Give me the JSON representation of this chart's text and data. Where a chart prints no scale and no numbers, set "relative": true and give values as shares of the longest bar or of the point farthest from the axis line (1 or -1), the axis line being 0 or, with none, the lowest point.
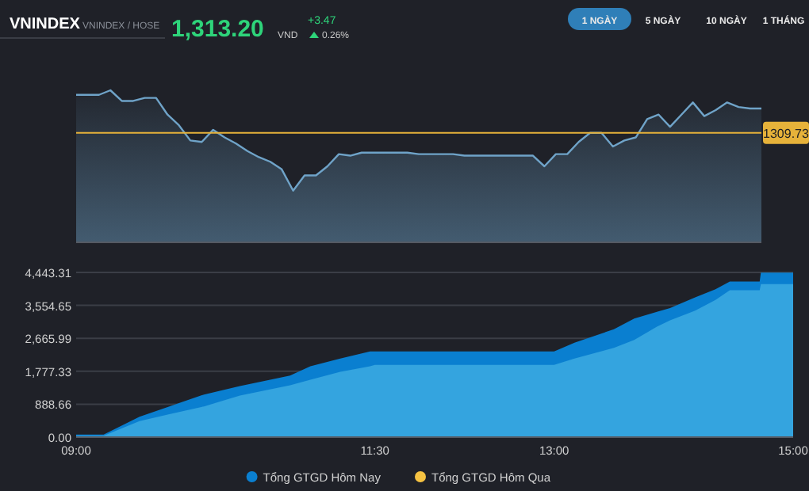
{
  "chart_data": [
    {
      "type": "area",
      "relative": true,
      "title": "VNINDEX",
      "subtitle": "VNINDEX / HOSE",
      "annotations": [
        "1,313.20",
        "VND",
        "+3.47",
        "0.26%",
        "1 NGÀY",
        "5 NGÀY",
        "10 NGÀY",
        "1 THÁNG",
        "1309.73"
      ],
      "categories": [
        null,
        null,
        null,
        null,
        null,
        null,
        null,
        null,
        null,
        null,
        null,
        null,
        null,
        null,
        null,
        null,
        null,
        null,
        null,
        null,
        null,
        null,
        null,
        null,
        null,
        null,
        null,
        null,
        null,
        null,
        null,
        null,
        null,
        null,
        null,
        null,
        null,
        null,
        null,
        null,
        null,
        null,
        null,
        null,
        null,
        null,
        null,
        null,
        null,
        null,
        null,
        null,
        null,
        null,
        null,
        null,
        null,
        null,
        null,
        null,
        null
      ],
      "ref_lines": [
        {
          "axis": "y",
          "value": 0.72,
          "color": "#e6b23a"
        }
      ],
      "series": [
        {
          "color": "#6fa3c8",
          "values": [
            0.97,
            0.97,
            0.97,
            1,
            0.93,
            0.93,
            0.95,
            0.95,
            0.84,
            0.77,
            0.67,
            0.66,
            0.74,
            0.69,
            0.65,
            0.6,
            0.56,
            0.53,
            0.48,
            0.34,
            0.44,
            0.44,
            0.5,
            0.58,
            0.57,
            0.59,
            0.59,
            0.59,
            0.59,
            0.59,
            0.58,
            0.58,
            0.58,
            0.58,
            0.57,
            0.57,
            0.57,
            0.57,
            0.57,
            0.57,
            0.57,
            0.5,
            0.58,
            0.58,
            0.66,
            0.72,
            0.72,
            0.63,
            0.67,
            0.69,
            0.81,
            0.84,
            0.76,
            0.84,
            0.92,
            0.83,
            0.87,
            0.92,
            0.89,
            0.88,
            0.88
          ]
        }
      ]
    },
    {
      "type": "area",
      "xlim": [
        9,
        15
      ],
      "ylim": [
        0,
        4443.31
      ],
      "grid": "y",
      "legend": "bottom",
      "xticks": [
        {
          "value": 9,
          "label": "09:00"
        },
        {
          "value": 11.5,
          "label": "11:30"
        },
        {
          "value": 13,
          "label": "13:00"
        },
        {
          "value": 15,
          "label": "15:00"
        }
      ],
      "yticks": [
        {
          "value": 0,
          "label": "0.00"
        },
        {
          "value": 888.66,
          "label": "888.66"
        },
        {
          "value": 1777.33,
          "label": "1,777.33"
        },
        {
          "value": 2665.99,
          "label": "2,665.99"
        },
        {
          "value": 3554.65,
          "label": "3,554.65"
        },
        {
          "value": 4443.31,
          "label": "4,443.31"
        }
      ],
      "x": [
        9.0,
        9.23,
        9.53,
        9.78,
        10.07,
        10.37,
        10.79,
        10.96,
        11.21,
        11.46,
        11.5,
        13.0,
        13.17,
        13.5,
        13.67,
        13.86,
        13.97,
        14.18,
        14.35,
        14.47,
        14.72,
        14.73,
        15.0
      ],
      "series": [
        {
          "name": "Tổng GTGD Hôm Nay",
          "color": "#0a7fd0",
          "values": [
            70,
            70,
            550,
            830,
            1150,
            1380,
            1660,
            1910,
            2120,
            2310,
            2310,
            2310,
            2550,
            2910,
            3200,
            3380,
            3480,
            3770,
            3990,
            4200,
            4200,
            4440,
            4440
          ]
        },
        {
          "color": "#34a4df",
          "values": [
            40,
            40,
            430,
            620,
            830,
            1120,
            1400,
            1550,
            1760,
            1910,
            1950,
            1950,
            2120,
            2410,
            2620,
            2980,
            3150,
            3410,
            3700,
            3960,
            3960,
            4130,
            4130
          ]
        },
        {
          "name": "Tổng GTGD Hôm Qua",
          "color": "#f5c242",
          "values": [
            null,
            null,
            null,
            null,
            null,
            null,
            null,
            null,
            null,
            null,
            null,
            null,
            null,
            null,
            null,
            null,
            null,
            null,
            null,
            null,
            null,
            null,
            null
          ]
        }
      ]
    }
  ]
}
